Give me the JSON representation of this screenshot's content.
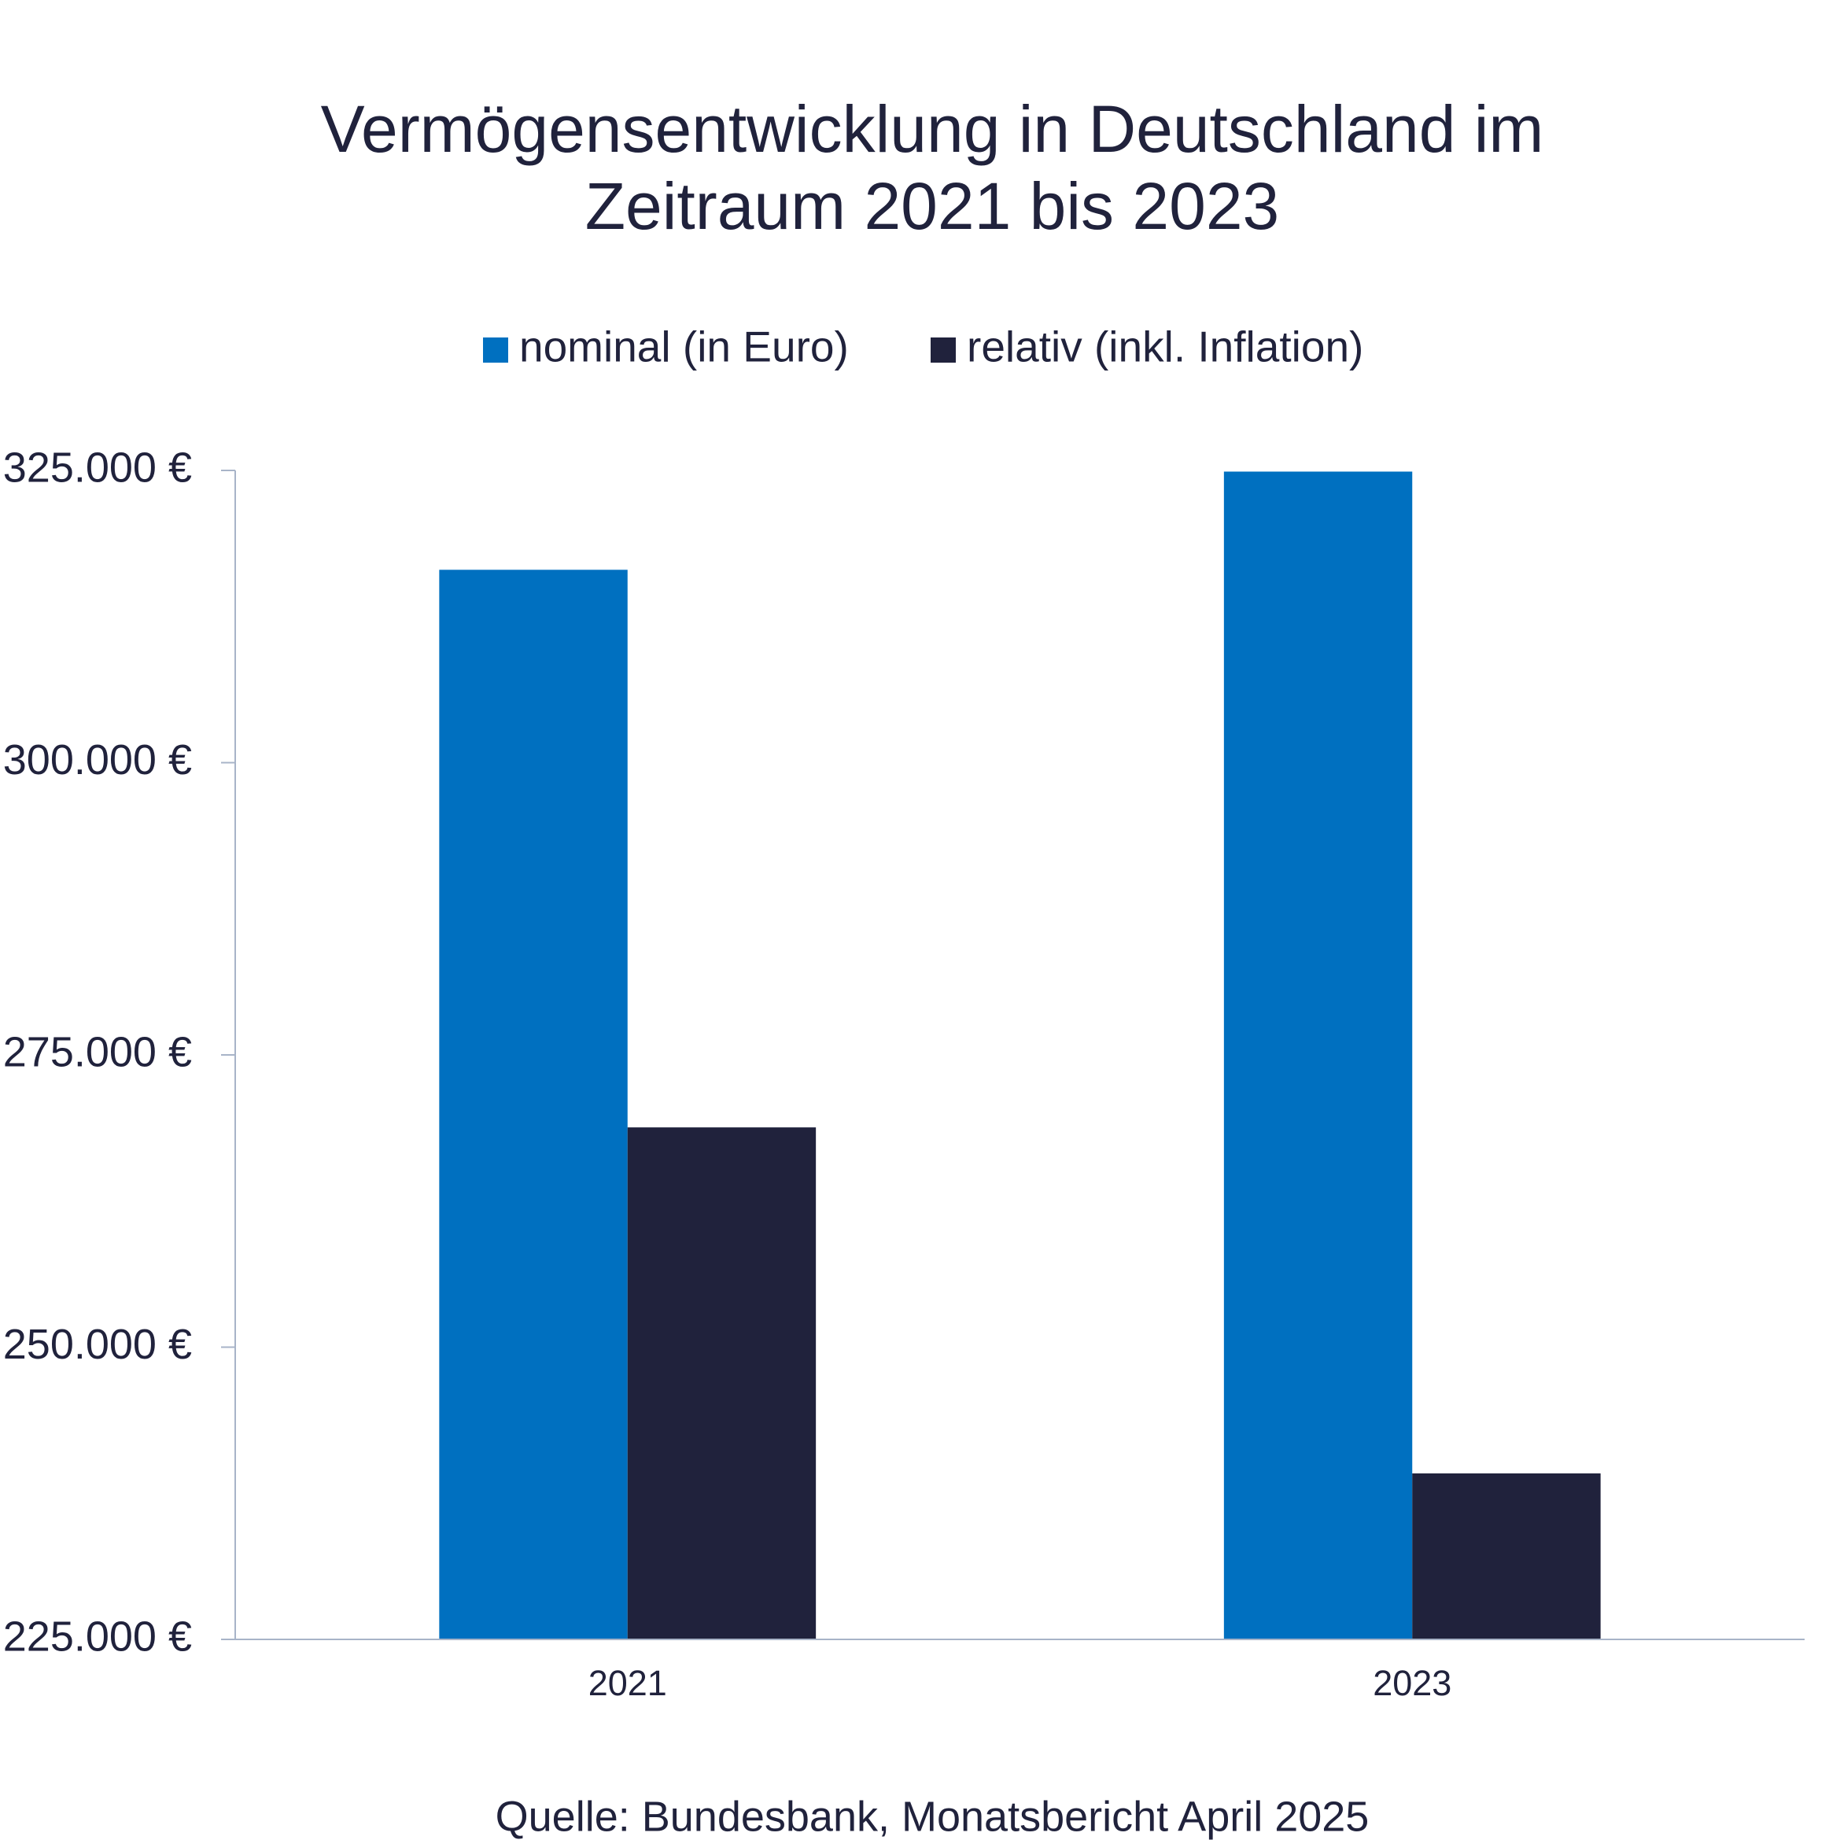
{
  "chart_data": {
    "type": "bar",
    "title": [
      "Vermögensentwicklung in Deutschland im",
      "Zeitraum 2021 bis 2023"
    ],
    "categories": [
      "2021",
      "2023"
    ],
    "series": [
      {
        "name": "nominal (in Euro)",
        "color": "#0070c0",
        "values": [
          316500,
          324900
        ]
      },
      {
        "name": "relativ (inkl. Inflation)",
        "color": "#20223c",
        "values": [
          268800,
          239200
        ]
      }
    ],
    "ylim": [
      225000,
      325000
    ],
    "yticks": [
      {
        "value": 225000,
        "label": "225.000 €"
      },
      {
        "value": 250000,
        "label": "250.000 €"
      },
      {
        "value": 275000,
        "label": "275.000 €"
      },
      {
        "value": 300000,
        "label": "300.000 €"
      },
      {
        "value": 325000,
        "label": "325.000 €"
      }
    ],
    "grid": false,
    "source": "Quelle: Bundesbank, Monatsbericht April 2025"
  }
}
